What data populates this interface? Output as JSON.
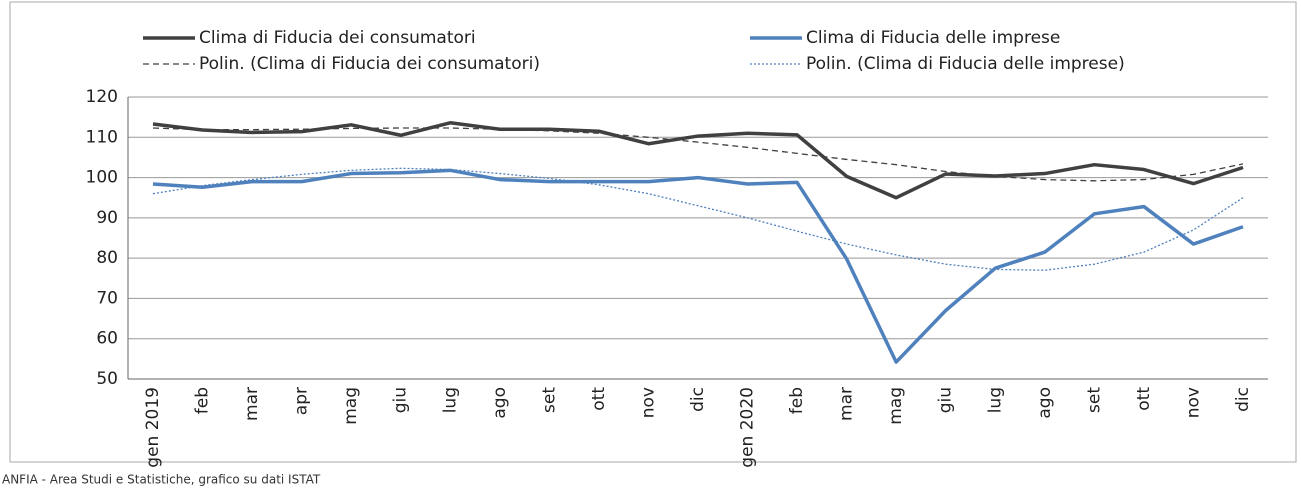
{
  "chart_data": {
    "type": "line",
    "categories": [
      "gen 2019",
      "feb",
      "mar",
      "apr",
      "mag",
      "giu",
      "lug",
      "ago",
      "set",
      "ott",
      "nov",
      "dic",
      "gen 2020",
      "feb",
      "mar",
      "mag",
      "giu",
      "lug",
      "ago",
      "set",
      "ott",
      "nov",
      "dic"
    ],
    "series": [
      {
        "name": "Clima di Fiducia dei consumatori",
        "color": "#404040",
        "style": "solid",
        "values": [
          113.3,
          111.8,
          111.2,
          111.4,
          113.1,
          110.5,
          113.6,
          112,
          112,
          111.5,
          108.4,
          110.3,
          111,
          110.6,
          100.3,
          95,
          100.9,
          100.4,
          101,
          103.2,
          102,
          98.5,
          102.5
        ]
      },
      {
        "name": "Clima di Fiducia delle imprese",
        "color": "#4f81bd",
        "style": "solid",
        "values": [
          98.4,
          97.6,
          99,
          99,
          101,
          101.2,
          101.8,
          99.5,
          99,
          99,
          99,
          100,
          98.4,
          98.8,
          79.8,
          54.2,
          67,
          77.5,
          81.5,
          91,
          92.8,
          83.5,
          87.8
        ]
      },
      {
        "name": "Polin. (Clima di Fiducia dei consumatori)",
        "color": "#404040",
        "style": "dashed",
        "values": [
          112.3,
          111.9,
          111.9,
          112,
          112.2,
          112.3,
          112.3,
          112,
          111.6,
          111,
          110,
          108.8,
          107.5,
          106,
          104.5,
          103.2,
          101.5,
          100.3,
          99.5,
          99.2,
          99.5,
          100.8,
          103.4
        ]
      },
      {
        "name": "Polin. (Clima di Fiducia delle imprese)",
        "color": "#4f81bd",
        "style": "dotted",
        "values": [
          96,
          98,
          99.5,
          100.8,
          101.8,
          102.3,
          102,
          101,
          99.8,
          98.2,
          96,
          93,
          90,
          86.7,
          83.5,
          80.8,
          78.5,
          77.2,
          77,
          78.5,
          81.5,
          87,
          95
        ]
      }
    ],
    "ylim": [
      50,
      120
    ],
    "yticks": [
      50,
      60,
      70,
      80,
      90,
      100,
      110,
      120
    ],
    "grid": true,
    "source": "ANFIA - Area Studi e Statistiche, grafico su dati ISTAT"
  }
}
